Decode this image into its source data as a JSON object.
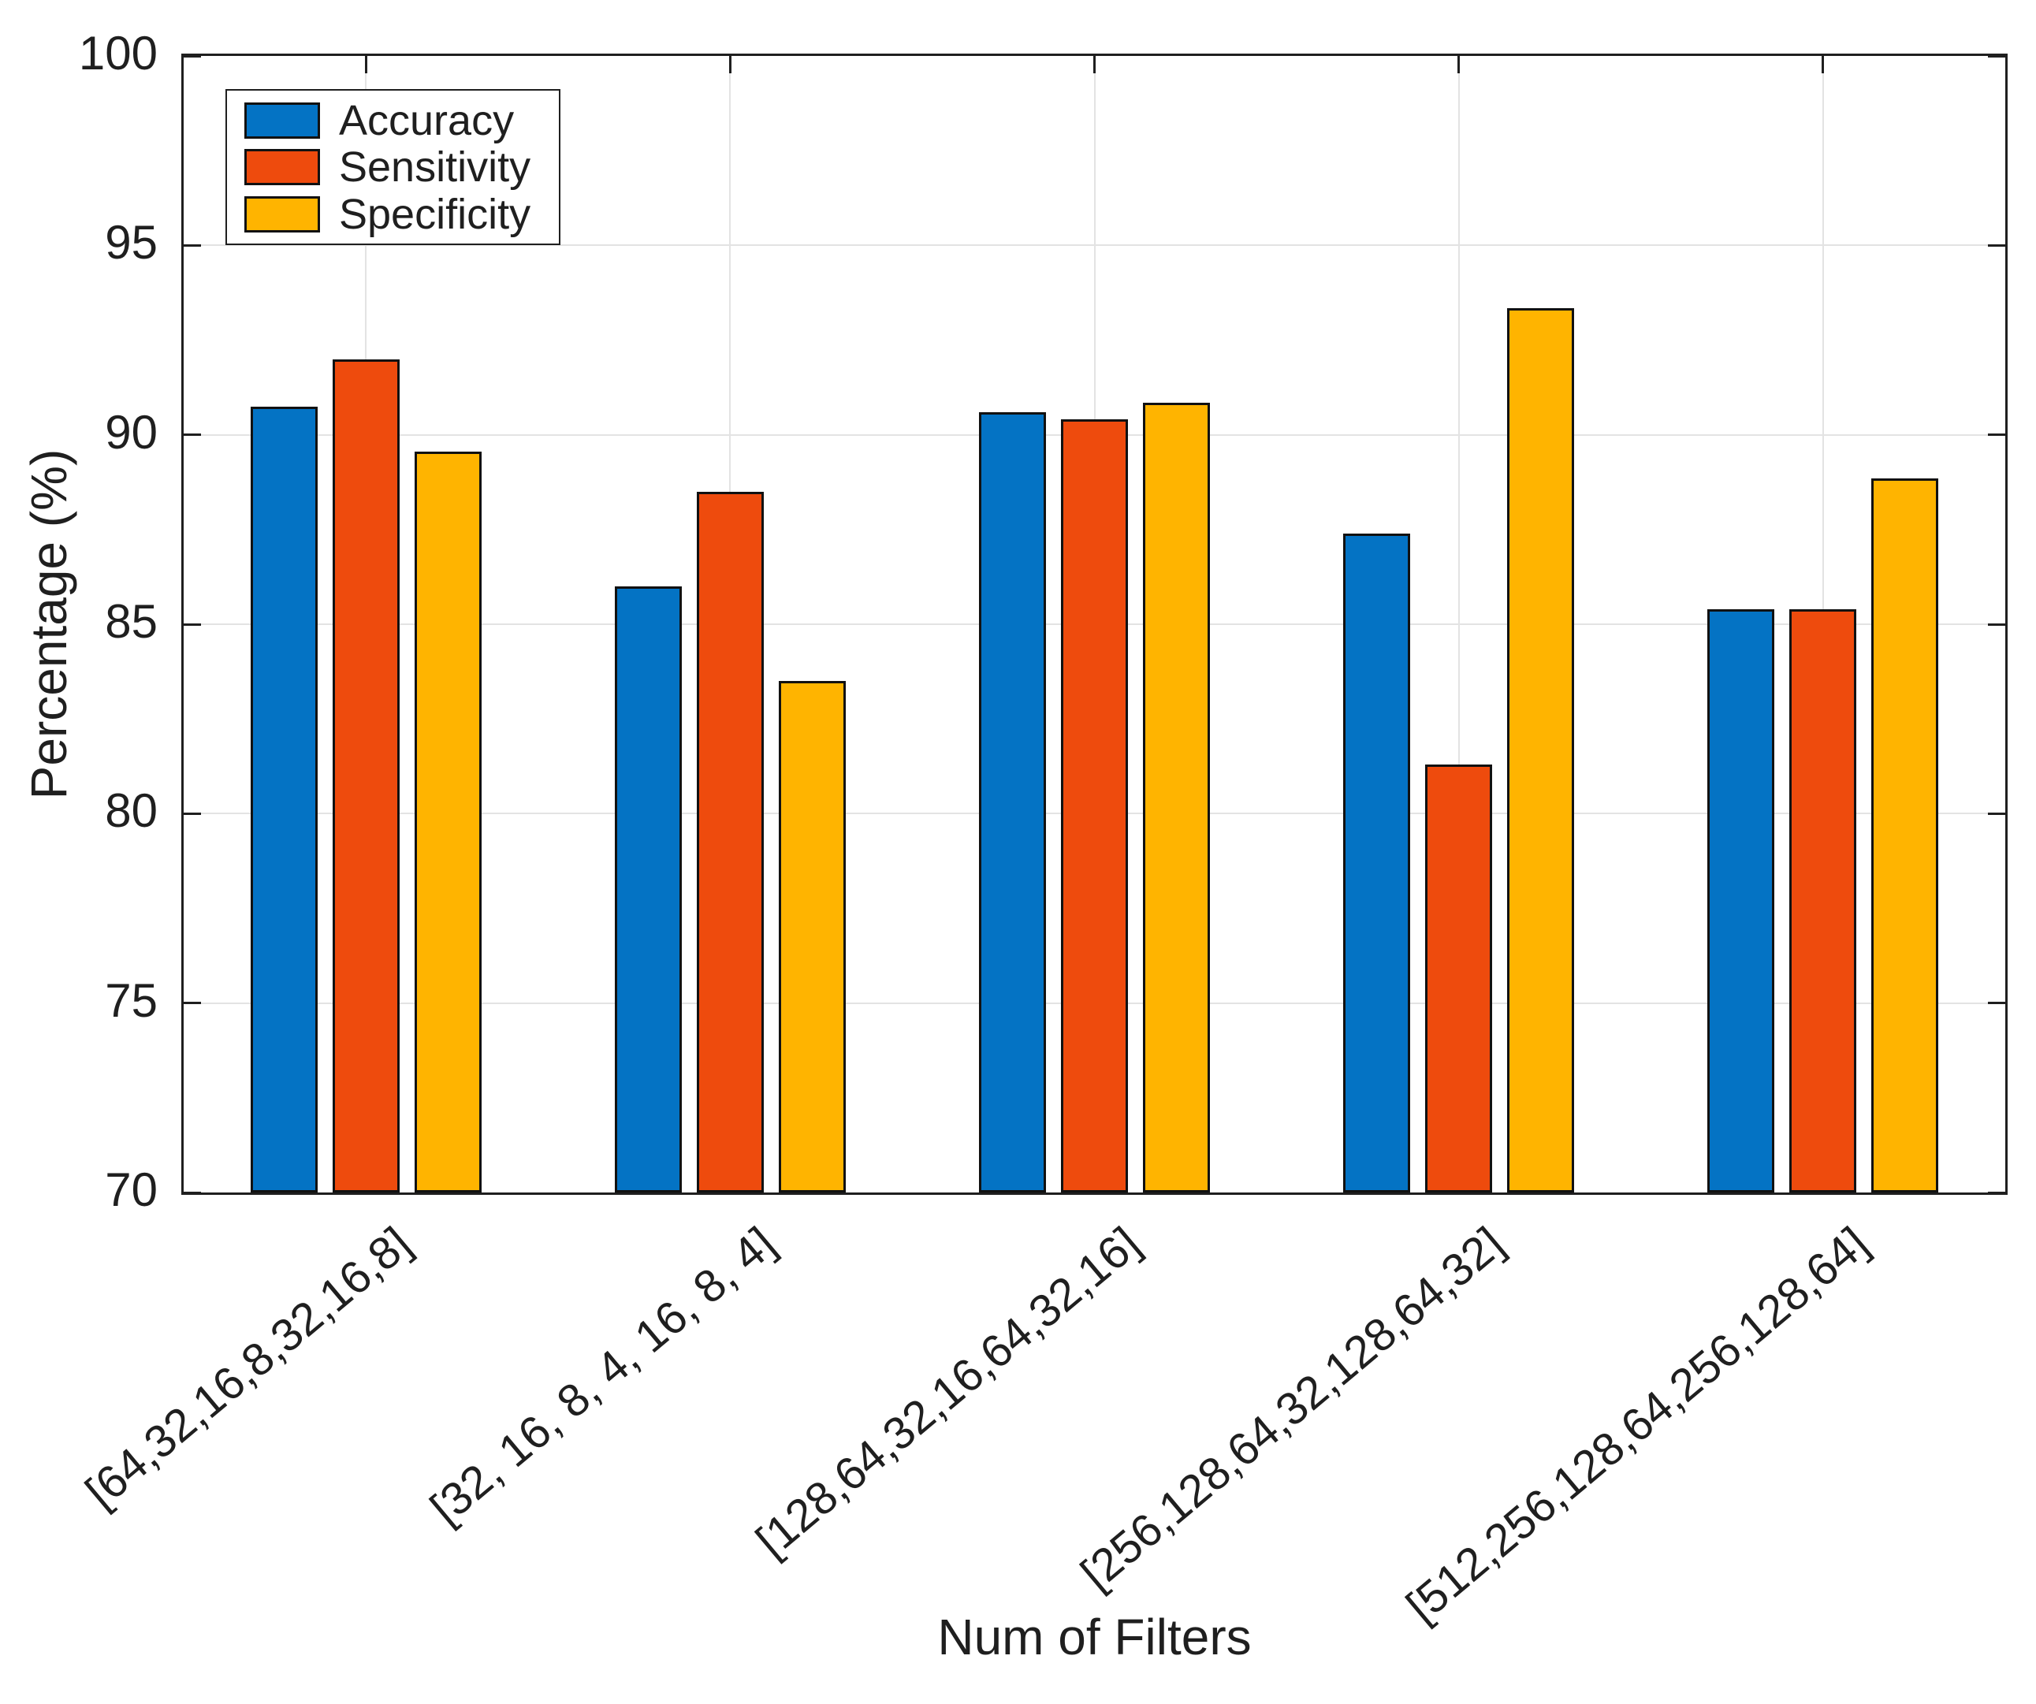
{
  "figure": {
    "background": "#ffffff",
    "axis_color": "#1f1f1f",
    "grid_color": "#e3e3e3",
    "bar_edge_color": "#111111"
  },
  "chart_data": {
    "type": "bar",
    "title": "",
    "xlabel": "Num of Filters",
    "ylabel": "Percentage (%)",
    "ylim": [
      70,
      100
    ],
    "yticks": [
      70,
      75,
      80,
      85,
      90,
      95,
      100
    ],
    "grid": true,
    "legend_position": "top-left-inside",
    "categories": [
      "[64,32,16,8,32,16,8]",
      "[32, 16, 8, 4, 16, 8, 4]",
      "[128,64,32,16,64,32,16]",
      "[256,128,64,32,128,64,32]",
      "[512,256,128,64,256,128,64]"
    ],
    "series": [
      {
        "name": "Accuracy",
        "color": "#0473c4",
        "values": [
          90.75,
          86.0,
          90.6,
          87.4,
          85.4
        ]
      },
      {
        "name": "Sensitivity",
        "color": "#ee4b0d",
        "values": [
          92.0,
          88.5,
          90.4,
          81.3,
          85.4
        ]
      },
      {
        "name": "Specificity",
        "color": "#ffb400",
        "values": [
          89.55,
          83.5,
          90.85,
          93.35,
          88.85
        ]
      }
    ]
  }
}
